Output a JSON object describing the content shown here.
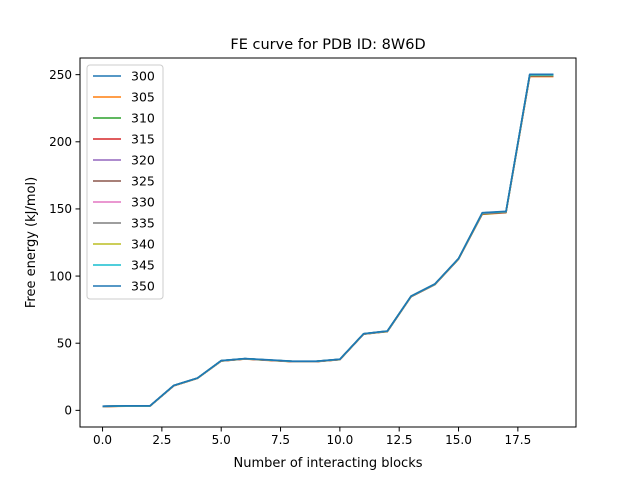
{
  "chart_data": {
    "type": "line",
    "title": "FE curve for PDB ID: 8W6D",
    "xlabel": "Number of interacting blocks",
    "ylabel": "Free energy (kJ/mol)",
    "xlim": [
      -0.95,
      19.95
    ],
    "ylim": [
      -12.4,
      262.4
    ],
    "x_ticks": [
      0.0,
      2.5,
      5.0,
      7.5,
      10.0,
      12.5,
      15.0,
      17.5
    ],
    "x_tick_labels": [
      "0.0",
      "2.5",
      "5.0",
      "7.5",
      "10.0",
      "12.5",
      "15.0",
      "17.5"
    ],
    "y_ticks": [
      0,
      50,
      100,
      150,
      200,
      250
    ],
    "y_tick_labels": [
      "0",
      "50",
      "100",
      "150",
      "200",
      "250"
    ],
    "grid": false,
    "legend_position": "top-left",
    "x": [
      0,
      1,
      2,
      3,
      4,
      5,
      6,
      7,
      8,
      9,
      10,
      11,
      12,
      13,
      14,
      15,
      16,
      17,
      18,
      19
    ],
    "series": [
      {
        "name": "300",
        "color": "#1f77b4",
        "values": [
          3,
          3.3,
          3.3,
          18.5,
          24,
          37,
          38.5,
          37.5,
          36.5,
          36.5,
          38,
          57,
          59,
          85,
          94,
          113,
          147,
          148,
          250,
          250
        ]
      },
      {
        "name": "305",
        "color": "#ff7f0e",
        "values": [
          2.8,
          3.1,
          3.1,
          18.2,
          23.8,
          36.7,
          38.2,
          37.2,
          36.2,
          36.2,
          37.7,
          56.7,
          58.6,
          84.6,
          93.6,
          112.6,
          146,
          147.2,
          248.6,
          248.6
        ]
      },
      {
        "name": "310",
        "color": "#2ca02c",
        "values": [
          2.9,
          3.2,
          3.2,
          18.3,
          23.9,
          36.8,
          38.3,
          37.3,
          36.3,
          36.3,
          37.8,
          56.8,
          58.7,
          84.7,
          93.7,
          112.7,
          146.3,
          147.4,
          249,
          249
        ]
      },
      {
        "name": "315",
        "color": "#d62728",
        "values": [
          2.9,
          3.2,
          3.2,
          18.3,
          23.9,
          36.8,
          38.3,
          37.3,
          36.3,
          36.3,
          37.8,
          56.8,
          58.8,
          84.8,
          93.8,
          112.8,
          146.5,
          147.5,
          249.2,
          249.2
        ]
      },
      {
        "name": "320",
        "color": "#9467bd",
        "values": [
          3,
          3.2,
          3.2,
          18.4,
          23.9,
          36.9,
          38.4,
          37.4,
          36.4,
          36.4,
          37.9,
          56.9,
          58.8,
          84.8,
          93.8,
          112.8,
          146.6,
          147.6,
          249.4,
          249.4
        ]
      },
      {
        "name": "325",
        "color": "#8c564b",
        "values": [
          3,
          3.3,
          3.3,
          18.4,
          24,
          36.9,
          38.4,
          37.4,
          36.4,
          36.4,
          37.9,
          56.9,
          58.9,
          84.9,
          93.9,
          112.9,
          146.7,
          147.7,
          249.5,
          249.5
        ]
      },
      {
        "name": "330",
        "color": "#e377c2",
        "values": [
          3,
          3.3,
          3.3,
          18.4,
          24,
          36.9,
          38.4,
          37.4,
          36.4,
          36.4,
          37.9,
          56.9,
          58.9,
          84.9,
          93.9,
          112.9,
          146.8,
          147.8,
          249.6,
          249.6
        ]
      },
      {
        "name": "335",
        "color": "#7f7f7f",
        "values": [
          3,
          3.3,
          3.3,
          18.5,
          24,
          37,
          38.5,
          37.5,
          36.5,
          36.5,
          38,
          57,
          58.9,
          84.9,
          93.9,
          112.9,
          146.9,
          147.8,
          249.7,
          249.7
        ]
      },
      {
        "name": "340",
        "color": "#bcbd22",
        "values": [
          3,
          3.3,
          3.3,
          18.5,
          24,
          37,
          38.5,
          37.5,
          36.5,
          36.5,
          38,
          57,
          59,
          85,
          94,
          113,
          147,
          147.9,
          249.8,
          249.8
        ]
      },
      {
        "name": "345",
        "color": "#17becf",
        "values": [
          3,
          3.3,
          3.3,
          18.5,
          24,
          37,
          38.5,
          37.5,
          36.5,
          36.5,
          38,
          57,
          59,
          85,
          94,
          113,
          147,
          148,
          249.9,
          249.9
        ]
      },
      {
        "name": "350",
        "color": "#1f77b4",
        "values": [
          3.1,
          3.4,
          3.4,
          18.6,
          24.1,
          37.1,
          38.6,
          37.6,
          36.6,
          36.6,
          38.1,
          57.1,
          59.1,
          85.1,
          94.1,
          113.1,
          147.2,
          148.2,
          250.3,
          250.3
        ]
      }
    ]
  }
}
